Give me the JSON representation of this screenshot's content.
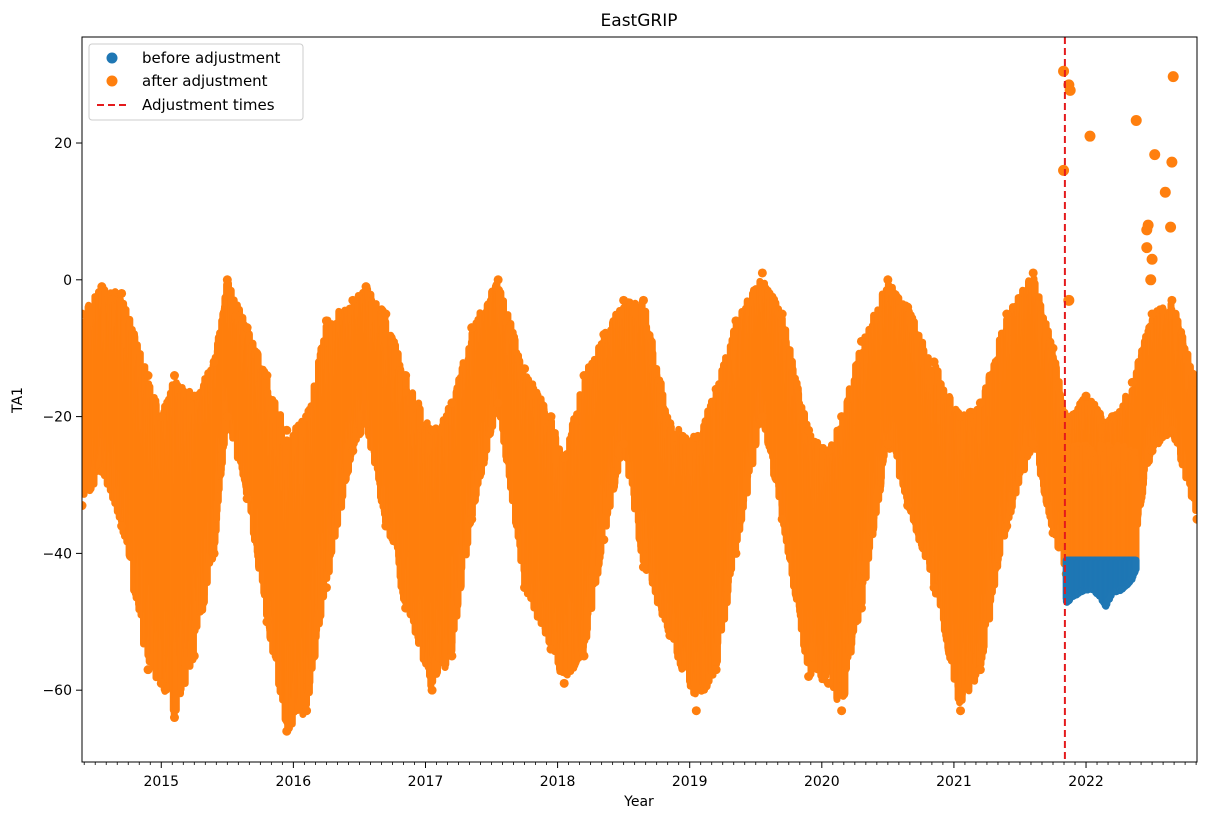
{
  "chart_data": {
    "type": "scatter",
    "title": "EastGRIP",
    "xlabel": "Year",
    "ylabel": "TA1",
    "xlim": [
      2014.4,
      2022.84
    ],
    "ylim": [
      -70.5,
      35.5
    ],
    "x_ticks": [
      2015,
      2016,
      2017,
      2018,
      2019,
      2020,
      2021,
      2022
    ],
    "x_tick_labels": [
      "2015",
      "2016",
      "2017",
      "2018",
      "2019",
      "2020",
      "2021",
      "2022"
    ],
    "y_ticks": [
      -60,
      -40,
      -20,
      0,
      20
    ],
    "y_tick_labels": [
      "−60",
      "−40",
      "−20",
      "0",
      "20"
    ],
    "grid": false,
    "legend_position": "upper left",
    "series": [
      {
        "name": "before adjustment",
        "color": "#1f77b4",
        "marker": "circle",
        "x_range": [
          2021.85,
          2022.38
        ],
        "values": [
          [
            2021.85,
            -46.5
          ],
          [
            2021.95,
            -45.0
          ],
          [
            2022.05,
            -44.5
          ],
          [
            2022.1,
            -45.5
          ],
          [
            2022.15,
            -47.0
          ],
          [
            2022.2,
            -45.0
          ],
          [
            2022.28,
            -44.5
          ],
          [
            2022.35,
            -43.0
          ],
          [
            2022.38,
            -41.5
          ]
        ]
      },
      {
        "name": "after adjustment",
        "color": "#ff7f0e",
        "marker": "circle",
        "values_envelope": [
          {
            "x": 2014.4,
            "low": -33,
            "high": -5
          },
          {
            "x": 2014.55,
            "low": -28,
            "high": -1
          },
          {
            "x": 2014.7,
            "low": -36,
            "high": -2
          },
          {
            "x": 2014.9,
            "low": -57,
            "high": -14
          },
          {
            "x": 2015.0,
            "low": -59,
            "high": -20
          },
          {
            "x": 2015.1,
            "low": -64,
            "high": -14
          },
          {
            "x": 2015.25,
            "low": -55,
            "high": -17
          },
          {
            "x": 2015.4,
            "low": -40,
            "high": -12
          },
          {
            "x": 2015.5,
            "low": -20,
            "high": 0
          },
          {
            "x": 2015.65,
            "low": -32,
            "high": -7
          },
          {
            "x": 2015.8,
            "low": -50,
            "high": -14
          },
          {
            "x": 2015.95,
            "low": -66,
            "high": -22
          },
          {
            "x": 2016.1,
            "low": -63,
            "high": -20
          },
          {
            "x": 2016.25,
            "low": -45,
            "high": -6
          },
          {
            "x": 2016.45,
            "low": -25,
            "high": -3
          },
          {
            "x": 2016.55,
            "low": -21,
            "high": -1
          },
          {
            "x": 2016.7,
            "low": -36,
            "high": -5
          },
          {
            "x": 2016.85,
            "low": -48,
            "high": -14
          },
          {
            "x": 2017.05,
            "low": -60,
            "high": -22
          },
          {
            "x": 2017.2,
            "low": -55,
            "high": -18
          },
          {
            "x": 2017.35,
            "low": -35,
            "high": -7
          },
          {
            "x": 2017.55,
            "low": -18,
            "high": 0
          },
          {
            "x": 2017.75,
            "low": -45,
            "high": -13
          },
          {
            "x": 2017.95,
            "low": -54,
            "high": -20
          },
          {
            "x": 2018.05,
            "low": -59,
            "high": -26
          },
          {
            "x": 2018.2,
            "low": -55,
            "high": -14
          },
          {
            "x": 2018.35,
            "low": -38,
            "high": -8
          },
          {
            "x": 2018.5,
            "low": -24,
            "high": -3
          },
          {
            "x": 2018.65,
            "low": -42,
            "high": -3
          },
          {
            "x": 2018.85,
            "low": -52,
            "high": -21
          },
          {
            "x": 2019.05,
            "low": -63,
            "high": -23
          },
          {
            "x": 2019.2,
            "low": -57,
            "high": -16
          },
          {
            "x": 2019.35,
            "low": -40,
            "high": -6
          },
          {
            "x": 2019.55,
            "low": -20,
            "high": 1
          },
          {
            "x": 2019.7,
            "low": -35,
            "high": -5
          },
          {
            "x": 2019.9,
            "low": -58,
            "high": -22
          },
          {
            "x": 2020.05,
            "low": -59,
            "high": -25
          },
          {
            "x": 2020.15,
            "low": -63,
            "high": -20
          },
          {
            "x": 2020.3,
            "low": -48,
            "high": -9
          },
          {
            "x": 2020.5,
            "low": -24,
            "high": 0
          },
          {
            "x": 2020.65,
            "low": -33,
            "high": -4
          },
          {
            "x": 2020.85,
            "low": -45,
            "high": -12
          },
          {
            "x": 2021.05,
            "low": -63,
            "high": -20
          },
          {
            "x": 2021.2,
            "low": -57,
            "high": -18
          },
          {
            "x": 2021.4,
            "low": -36,
            "high": -5
          },
          {
            "x": 2021.6,
            "low": -24,
            "high": 1
          },
          {
            "x": 2021.75,
            "low": -37,
            "high": -10
          },
          {
            "x": 2021.85,
            "low": -43,
            "high": -20
          },
          {
            "x": 2022.0,
            "low": -41,
            "high": -17
          },
          {
            "x": 2022.2,
            "low": -41,
            "high": -20
          },
          {
            "x": 2022.35,
            "low": -40,
            "high": -15
          },
          {
            "x": 2022.5,
            "low": -25,
            "high": -5
          },
          {
            "x": 2022.65,
            "low": -22,
            "high": -3
          },
          {
            "x": 2022.84,
            "low": -35,
            "high": -15
          }
        ],
        "outliers": [
          [
            2021.83,
            30.5
          ],
          [
            2021.83,
            16.0
          ],
          [
            2021.87,
            28.5
          ],
          [
            2021.88,
            27.7
          ],
          [
            2021.87,
            -3.0
          ],
          [
            2022.03,
            21.0
          ],
          [
            2022.38,
            23.3
          ],
          [
            2022.52,
            18.3
          ],
          [
            2022.6,
            12.8
          ],
          [
            2022.65,
            17.2
          ],
          [
            2022.66,
            29.7
          ],
          [
            2022.64,
            7.7
          ],
          [
            2022.47,
            8.0
          ],
          [
            2022.46,
            7.3
          ],
          [
            2022.46,
            4.7
          ],
          [
            2022.5,
            3.0
          ],
          [
            2022.49,
            0.0
          ]
        ]
      }
    ],
    "vlines": [
      {
        "name": "Adjustment times",
        "x": 2021.84,
        "color": "#e41a1c",
        "style": "dashed"
      }
    ]
  }
}
